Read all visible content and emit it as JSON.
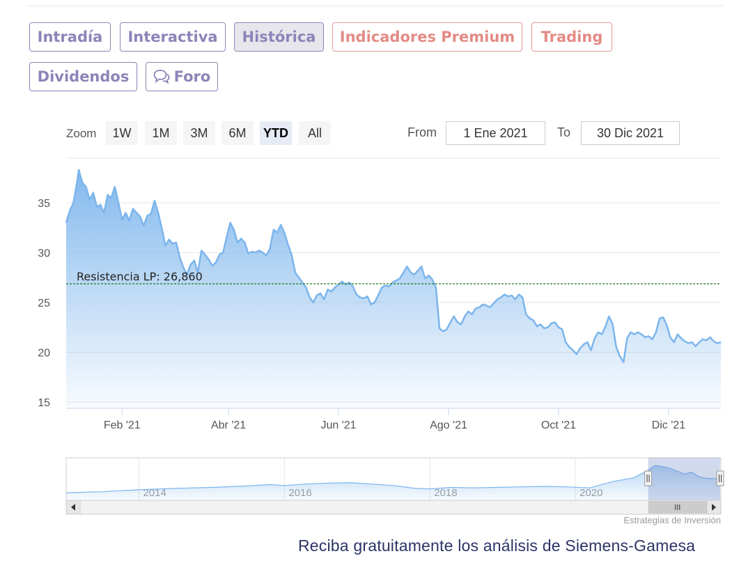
{
  "tabs": [
    {
      "label": "Intradía",
      "style": "normal"
    },
    {
      "label": "Interactiva",
      "style": "normal"
    },
    {
      "label": "Histórica",
      "style": "active"
    },
    {
      "label": "Indicadores Premium",
      "style": "premium"
    },
    {
      "label": "Trading",
      "style": "premium"
    },
    {
      "label": "Dividendos",
      "style": "normal"
    },
    {
      "label": "Foro",
      "style": "normal",
      "icon": "chat-bubbles-icon"
    }
  ],
  "range_selector": {
    "zoom_label": "Zoom",
    "buttons": [
      "1W",
      "1M",
      "3M",
      "6M",
      "YTD",
      "All"
    ],
    "selected": "YTD",
    "from_label": "From",
    "from_value": "1 Ene 2021",
    "to_label": "To",
    "to_value": "30 Dic 2021"
  },
  "chart_data": {
    "type": "area",
    "x_start": "2021-01-01",
    "x_end": "2021-12-30",
    "x_ticks": [
      {
        "date": "2021-02-01",
        "label": "Feb '21"
      },
      {
        "date": "2021-04-01",
        "label": "Abr '21"
      },
      {
        "date": "2021-06-01",
        "label": "Jun '21"
      },
      {
        "date": "2021-08-01",
        "label": "Ago '21"
      },
      {
        "date": "2021-10-01",
        "label": "Oct '21"
      },
      {
        "date": "2021-12-01",
        "label": "Dic '21"
      }
    ],
    "ylim": [
      15,
      40
    ],
    "yticks": [
      15,
      20,
      25,
      30,
      35
    ],
    "grid": true,
    "resistance": {
      "label": "Resistencia LP: 26,860",
      "value": 26.86
    },
    "line_color": "#7cb5ec",
    "resistance_color": "#1b7a1b",
    "series": [
      {
        "values": [
          [
            "2021-01-01",
            33.0
          ],
          [
            "2021-01-03",
            34.2
          ],
          [
            "2021-01-05",
            35.0
          ],
          [
            "2021-01-07",
            37.0
          ],
          [
            "2021-01-08",
            38.3
          ],
          [
            "2021-01-10",
            37.0
          ],
          [
            "2021-01-12",
            36.6
          ],
          [
            "2021-01-14",
            35.3
          ],
          [
            "2021-01-16",
            36.0
          ],
          [
            "2021-01-18",
            34.6
          ],
          [
            "2021-01-20",
            34.8
          ],
          [
            "2021-01-22",
            34.0
          ],
          [
            "2021-01-24",
            35.8
          ],
          [
            "2021-01-26",
            35.5
          ],
          [
            "2021-01-28",
            36.6
          ],
          [
            "2021-01-30",
            35.0
          ],
          [
            "2021-02-01",
            33.3
          ],
          [
            "2021-02-03",
            34.0
          ],
          [
            "2021-02-05",
            33.2
          ],
          [
            "2021-02-07",
            34.4
          ],
          [
            "2021-02-09",
            34.0
          ],
          [
            "2021-02-11",
            33.6
          ],
          [
            "2021-02-13",
            32.7
          ],
          [
            "2021-02-15",
            33.7
          ],
          [
            "2021-02-17",
            33.9
          ],
          [
            "2021-02-19",
            35.2
          ],
          [
            "2021-02-21",
            34.0
          ],
          [
            "2021-02-23",
            32.5
          ],
          [
            "2021-02-25",
            30.7
          ],
          [
            "2021-02-27",
            31.3
          ],
          [
            "2021-03-01",
            30.9
          ],
          [
            "2021-03-03",
            31.0
          ],
          [
            "2021-03-05",
            29.5
          ],
          [
            "2021-03-07",
            28.5
          ],
          [
            "2021-03-09",
            27.8
          ],
          [
            "2021-03-11",
            28.8
          ],
          [
            "2021-03-13",
            29.2
          ],
          [
            "2021-03-15",
            28.0
          ],
          [
            "2021-03-17",
            30.2
          ],
          [
            "2021-03-19",
            29.8
          ],
          [
            "2021-03-21",
            29.3
          ],
          [
            "2021-03-23",
            28.7
          ],
          [
            "2021-03-25",
            29.0
          ],
          [
            "2021-03-27",
            29.8
          ],
          [
            "2021-03-29",
            30.0
          ],
          [
            "2021-03-31",
            31.6
          ],
          [
            "2021-04-02",
            33.0
          ],
          [
            "2021-04-04",
            32.3
          ],
          [
            "2021-04-06",
            31.0
          ],
          [
            "2021-04-08",
            31.4
          ],
          [
            "2021-04-10",
            31.0
          ],
          [
            "2021-04-12",
            29.9
          ],
          [
            "2021-04-14",
            30.1
          ],
          [
            "2021-04-16",
            30.0
          ],
          [
            "2021-04-18",
            30.2
          ],
          [
            "2021-04-20",
            30.0
          ],
          [
            "2021-04-22",
            29.7
          ],
          [
            "2021-04-24",
            30.4
          ],
          [
            "2021-04-26",
            32.3
          ],
          [
            "2021-04-28",
            32.0
          ],
          [
            "2021-04-30",
            32.8
          ],
          [
            "2021-05-02",
            32.0
          ],
          [
            "2021-05-04",
            30.8
          ],
          [
            "2021-05-06",
            29.8
          ],
          [
            "2021-05-08",
            28.0
          ],
          [
            "2021-05-10",
            27.5
          ],
          [
            "2021-05-12",
            27.0
          ],
          [
            "2021-05-14",
            26.5
          ],
          [
            "2021-05-16",
            25.5
          ],
          [
            "2021-05-18",
            25.0
          ],
          [
            "2021-05-20",
            25.7
          ],
          [
            "2021-05-22",
            25.9
          ],
          [
            "2021-05-24",
            25.3
          ],
          [
            "2021-05-26",
            26.3
          ],
          [
            "2021-05-28",
            26.1
          ],
          [
            "2021-05-30",
            26.5
          ],
          [
            "2021-06-01",
            26.8
          ],
          [
            "2021-06-03",
            27.1
          ],
          [
            "2021-06-05",
            26.8
          ],
          [
            "2021-06-07",
            27.0
          ],
          [
            "2021-06-09",
            26.6
          ],
          [
            "2021-06-11",
            25.8
          ],
          [
            "2021-06-13",
            25.5
          ],
          [
            "2021-06-15",
            25.4
          ],
          [
            "2021-06-17",
            25.6
          ],
          [
            "2021-06-19",
            24.8
          ],
          [
            "2021-06-21",
            25.0
          ],
          [
            "2021-06-23",
            25.7
          ],
          [
            "2021-06-25",
            26.5
          ],
          [
            "2021-06-27",
            26.7
          ],
          [
            "2021-06-29",
            26.6
          ],
          [
            "2021-07-01",
            27.0
          ],
          [
            "2021-07-03",
            27.2
          ],
          [
            "2021-07-05",
            27.4
          ],
          [
            "2021-07-07",
            28.0
          ],
          [
            "2021-07-09",
            28.6
          ],
          [
            "2021-07-11",
            28.0
          ],
          [
            "2021-07-13",
            27.8
          ],
          [
            "2021-07-15",
            28.2
          ],
          [
            "2021-07-17",
            28.6
          ],
          [
            "2021-07-19",
            27.4
          ],
          [
            "2021-07-21",
            27.7
          ],
          [
            "2021-07-23",
            27.3
          ],
          [
            "2021-07-25",
            26.5
          ],
          [
            "2021-07-27",
            22.4
          ],
          [
            "2021-07-29",
            22.1
          ],
          [
            "2021-07-31",
            22.3
          ],
          [
            "2021-08-02",
            23.0
          ],
          [
            "2021-08-04",
            23.6
          ],
          [
            "2021-08-06",
            23.0
          ],
          [
            "2021-08-08",
            22.8
          ],
          [
            "2021-08-10",
            23.6
          ],
          [
            "2021-08-12",
            24.1
          ],
          [
            "2021-08-14",
            23.8
          ],
          [
            "2021-08-16",
            24.4
          ],
          [
            "2021-08-18",
            24.5
          ],
          [
            "2021-08-20",
            24.8
          ],
          [
            "2021-08-22",
            24.7
          ],
          [
            "2021-08-24",
            24.5
          ],
          [
            "2021-08-26",
            24.9
          ],
          [
            "2021-08-28",
            25.3
          ],
          [
            "2021-08-30",
            25.5
          ],
          [
            "2021-09-01",
            25.8
          ],
          [
            "2021-09-03",
            25.6
          ],
          [
            "2021-09-05",
            25.7
          ],
          [
            "2021-09-07",
            25.3
          ],
          [
            "2021-09-09",
            25.8
          ],
          [
            "2021-09-11",
            25.5
          ],
          [
            "2021-09-13",
            23.8
          ],
          [
            "2021-09-15",
            23.4
          ],
          [
            "2021-09-17",
            23.2
          ],
          [
            "2021-09-19",
            22.6
          ],
          [
            "2021-09-21",
            22.8
          ],
          [
            "2021-09-23",
            22.4
          ],
          [
            "2021-09-25",
            22.5
          ],
          [
            "2021-09-27",
            22.9
          ],
          [
            "2021-09-29",
            23.0
          ],
          [
            "2021-10-01",
            22.5
          ],
          [
            "2021-10-03",
            22.3
          ],
          [
            "2021-10-05",
            21.0
          ],
          [
            "2021-10-07",
            20.5
          ],
          [
            "2021-10-09",
            20.2
          ],
          [
            "2021-10-11",
            19.8
          ],
          [
            "2021-10-13",
            20.4
          ],
          [
            "2021-10-15",
            20.8
          ],
          [
            "2021-10-17",
            21.0
          ],
          [
            "2021-10-19",
            20.2
          ],
          [
            "2021-10-21",
            21.4
          ],
          [
            "2021-10-23",
            22.0
          ],
          [
            "2021-10-25",
            21.8
          ],
          [
            "2021-10-27",
            22.6
          ],
          [
            "2021-10-29",
            23.6
          ],
          [
            "2021-10-31",
            22.8
          ],
          [
            "2021-11-02",
            20.5
          ],
          [
            "2021-11-04",
            19.6
          ],
          [
            "2021-11-06",
            19.0
          ],
          [
            "2021-11-08",
            21.4
          ],
          [
            "2021-11-10",
            22.0
          ],
          [
            "2021-11-12",
            21.8
          ],
          [
            "2021-11-14",
            22.0
          ],
          [
            "2021-11-16",
            21.8
          ],
          [
            "2021-11-18",
            21.5
          ],
          [
            "2021-11-20",
            21.6
          ],
          [
            "2021-11-22",
            21.3
          ],
          [
            "2021-11-24",
            22.0
          ],
          [
            "2021-11-26",
            23.4
          ],
          [
            "2021-11-28",
            23.5
          ],
          [
            "2021-11-30",
            22.7
          ],
          [
            "2021-12-02",
            21.5
          ],
          [
            "2021-12-04",
            21.0
          ],
          [
            "2021-12-06",
            21.8
          ],
          [
            "2021-12-08",
            21.4
          ],
          [
            "2021-12-10",
            21.1
          ],
          [
            "2021-12-12",
            20.9
          ],
          [
            "2021-12-14",
            21.0
          ],
          [
            "2021-12-16",
            20.6
          ],
          [
            "2021-12-18",
            21.0
          ],
          [
            "2021-12-20",
            21.3
          ],
          [
            "2021-12-22",
            21.2
          ],
          [
            "2021-12-24",
            21.5
          ],
          [
            "2021-12-26",
            21.1
          ],
          [
            "2021-12-28",
            20.9
          ],
          [
            "2021-12-30",
            21.0
          ]
        ]
      }
    ],
    "navigator": {
      "x_ticks": [
        "2014",
        "2016",
        "2018",
        "2020"
      ],
      "x_range": [
        2013.0,
        2022.0
      ],
      "selection": [
        2021.0,
        2021.99
      ],
      "series": [
        [
          2013.0,
          6.5
        ],
        [
          2013.5,
          7.5
        ],
        [
          2014.0,
          9.5
        ],
        [
          2014.5,
          11.0
        ],
        [
          2015.0,
          12.0
        ],
        [
          2015.5,
          13.5
        ],
        [
          2015.8,
          15.0
        ],
        [
          2016.0,
          14.0
        ],
        [
          2016.3,
          15.5
        ],
        [
          2016.6,
          16.5
        ],
        [
          2016.9,
          17.0
        ],
        [
          2017.2,
          15.5
        ],
        [
          2017.5,
          14.0
        ],
        [
          2017.8,
          11.0
        ],
        [
          2018.0,
          10.5
        ],
        [
          2018.3,
          12.0
        ],
        [
          2018.6,
          11.5
        ],
        [
          2018.9,
          12.0
        ],
        [
          2019.2,
          12.5
        ],
        [
          2019.6,
          13.0
        ],
        [
          2019.9,
          12.5
        ],
        [
          2020.2,
          11.5
        ],
        [
          2020.5,
          18.0
        ],
        [
          2020.8,
          22.0
        ],
        [
          2021.0,
          30.0
        ],
        [
          2021.1,
          35.0
        ],
        [
          2021.3,
          32.0
        ],
        [
          2021.5,
          26.0
        ],
        [
          2021.6,
          28.0
        ],
        [
          2021.7,
          23.0
        ],
        [
          2021.8,
          21.5
        ],
        [
          2021.99,
          21.0
        ]
      ]
    }
  },
  "credit": "Estrategias de Inversión",
  "cta": "Reciba gratuitamente los análisis de Siemens-Gamesa"
}
